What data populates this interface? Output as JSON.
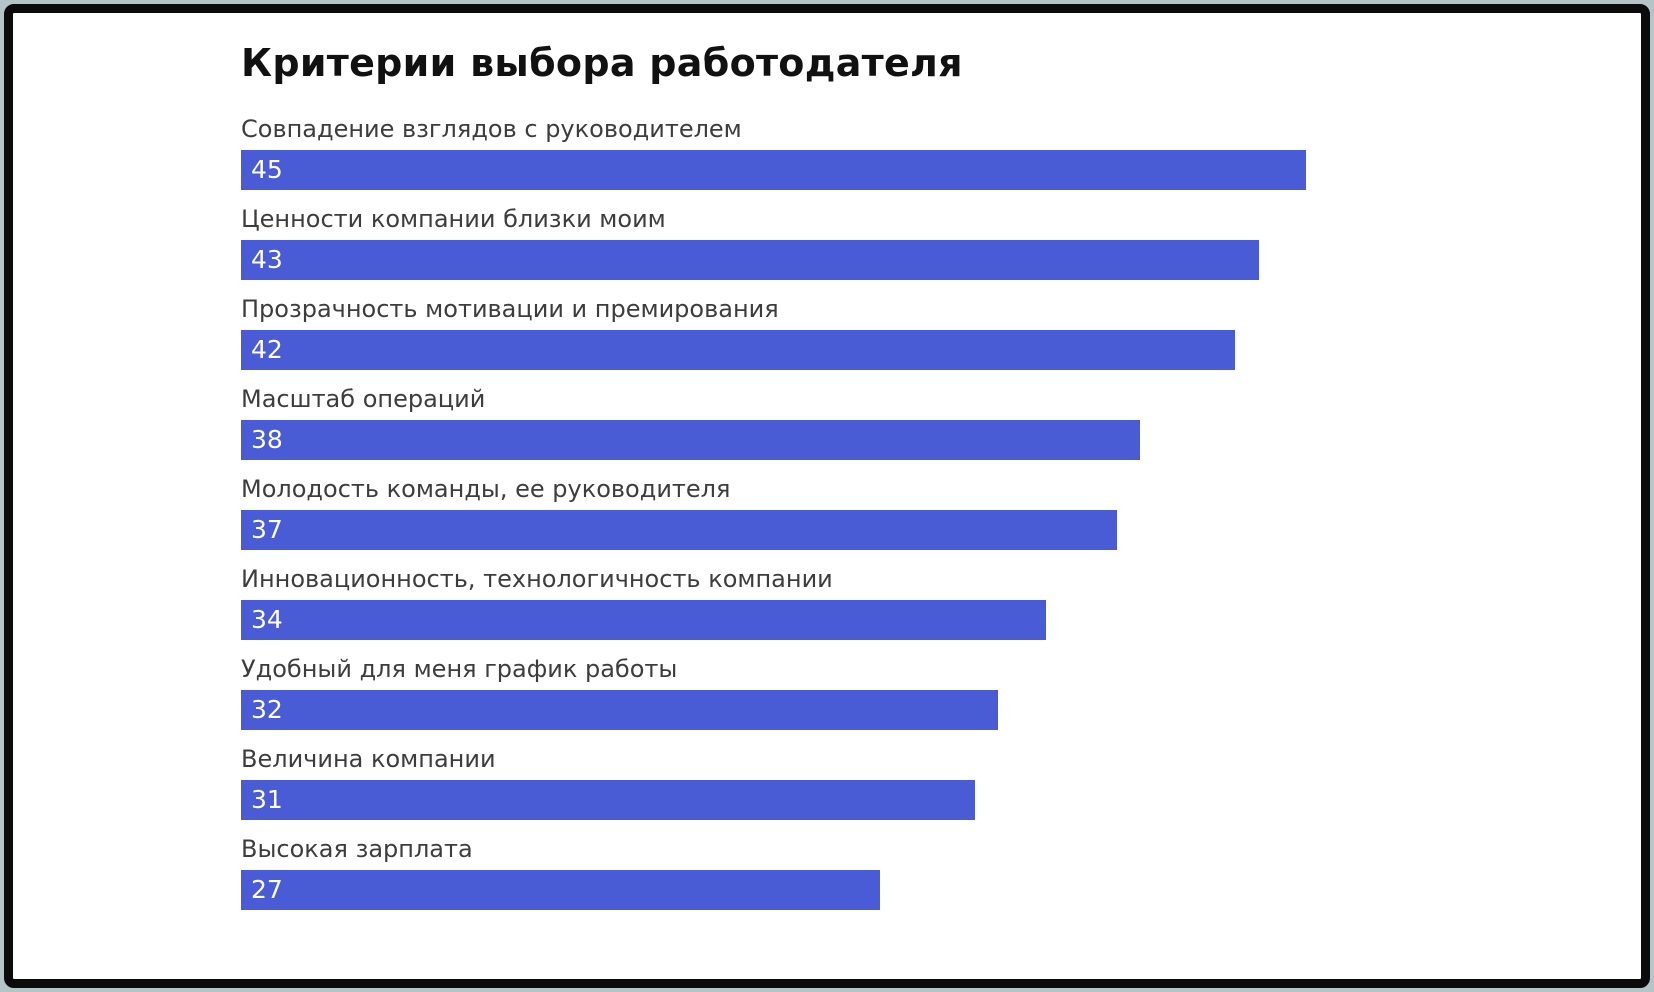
{
  "chart_data": {
    "type": "bar",
    "orientation": "horizontal",
    "title": "Критерии выбора работодателя",
    "categories": [
      "Совпадение взглядов с руководителем",
      "Ценности компании близки моим",
      "Прозрачность мотивации и премирования",
      "Масштаб операций",
      "Молодость команды, ее руководителя",
      "Инновационность, технологичность компании",
      "Удобный для меня график работы",
      "Величина компании",
      "Высокая зарплата"
    ],
    "values": [
      45,
      43,
      42,
      38,
      37,
      34,
      32,
      31,
      27
    ],
    "xlim": [
      0,
      45
    ],
    "value_labels_inside_bars": true,
    "grid": false,
    "legend": "none",
    "bar_color": "#4a5bd6",
    "label_color": "#3d3d3d",
    "value_label_color": "#ffffff",
    "background": "#ffffff",
    "frame_border_color": "#0b0b0b"
  }
}
